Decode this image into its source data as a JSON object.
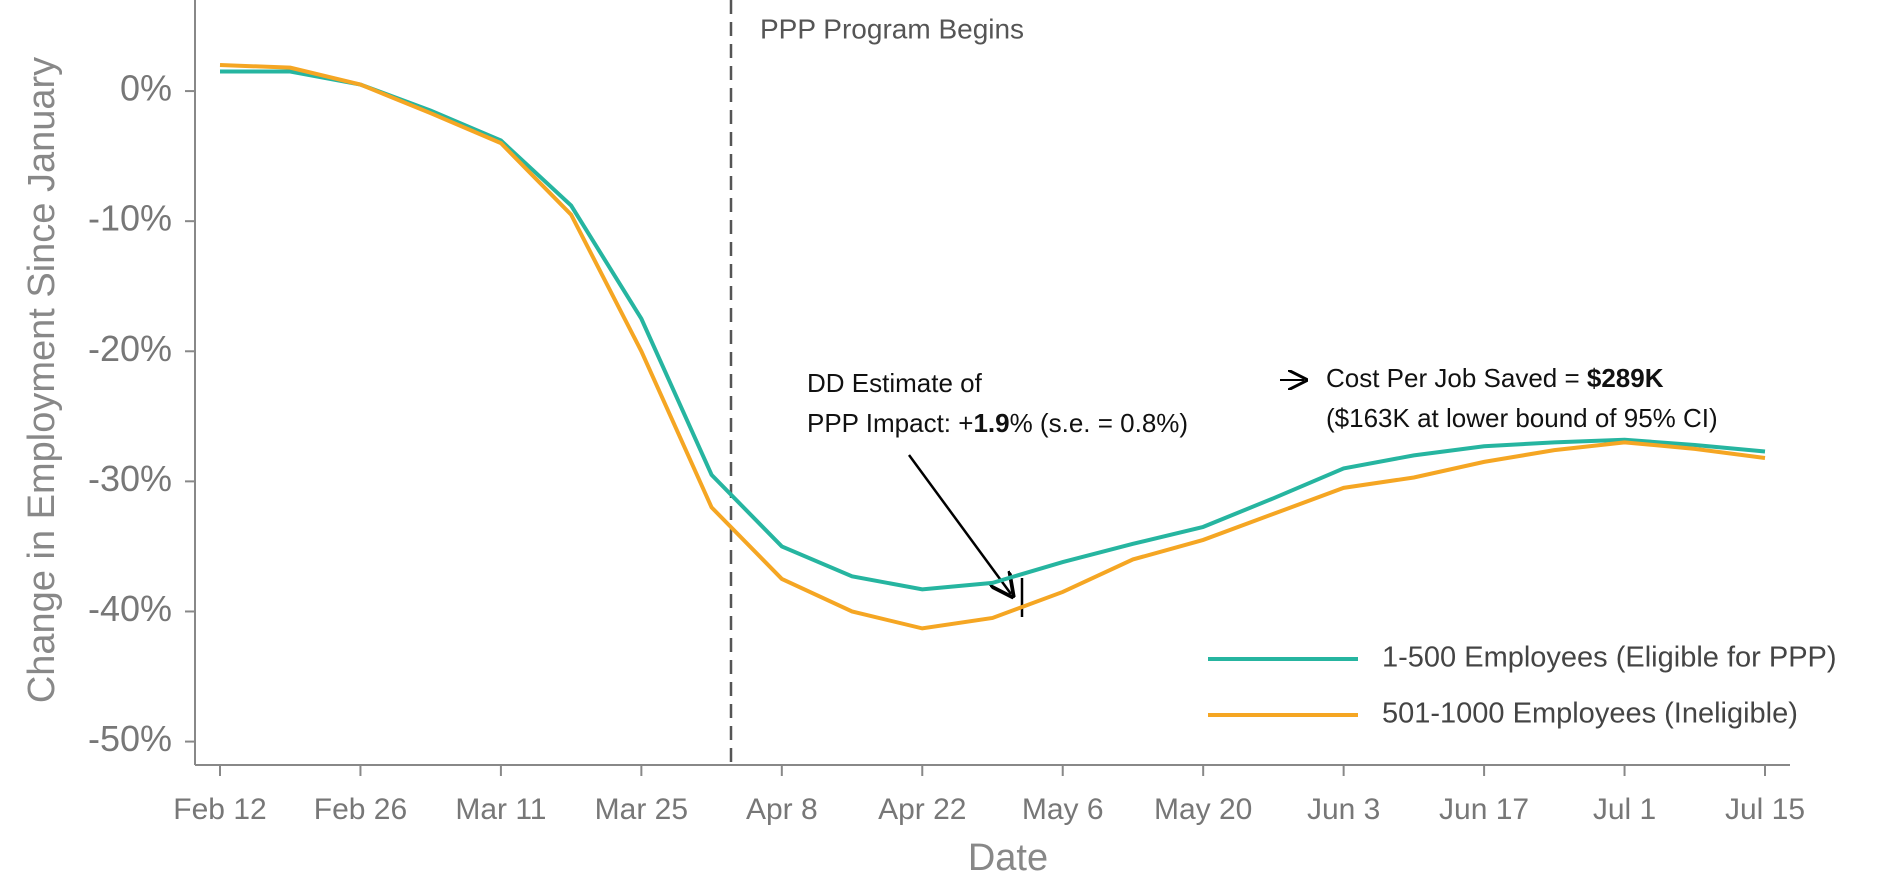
{
  "chart_data": {
    "type": "line",
    "x_label": "Date",
    "y_label": "Change in Employment Since January",
    "categories": [
      "Feb 12",
      null,
      "Feb 26",
      null,
      "Mar 11",
      null,
      "Mar 25",
      null,
      "Apr 8",
      null,
      "Apr 22",
      null,
      "May 6",
      null,
      "May 20",
      null,
      "Jun 3",
      null,
      "Jun 17",
      null,
      "Jul 1",
      null,
      "Jul 15"
    ],
    "series": [
      {
        "name": "1-500 Employees (Eligible for PPP)",
        "color": "#26b5a0",
        "values": [
          1.5,
          1.5,
          0.5,
          -1.5,
          -3.8,
          -8.8,
          -17.5,
          -29.5,
          -35,
          -37.3,
          -38.3,
          -37.8,
          -36.2,
          -34.8,
          -33.5,
          -31.3,
          -29,
          -28,
          -27.3,
          -27,
          -26.8,
          -27.2,
          -27.7
        ]
      },
      {
        "name": "501-1000 Employees (Ineligible)",
        "color": "#f5a623",
        "values": [
          2,
          1.8,
          0.5,
          -1.7,
          -4,
          -9.5,
          -20,
          -32,
          -37.5,
          -40,
          -41.3,
          -40.5,
          -38.5,
          -36,
          -34.5,
          -32.5,
          -30.5,
          -29.7,
          -28.5,
          -27.6,
          -27,
          -27.5,
          -28.2
        ]
      }
    ],
    "ylim": [
      -51.8,
      7
    ],
    "yticks": [
      {
        "value": 0,
        "label": "0%"
      },
      {
        "value": -10,
        "label": "-10%"
      },
      {
        "value": -20,
        "label": "-20%"
      },
      {
        "value": -30,
        "label": "-30%"
      },
      {
        "value": -40,
        "label": "-40%"
      },
      {
        "value": -50,
        "label": "-50%"
      }
    ],
    "annotations": {
      "program": "PPP Program Begins",
      "dd_line1": "DD Estimate of",
      "dd_line2_a": "PPP Impact: +",
      "dd_line2_b": "1.9",
      "dd_line2_c": "% (s.e. = 0.8%)",
      "cost_a": "Cost Per Job Saved = ",
      "cost_b": "$289K",
      "cost_line2": "($163K at lower bound of 95% CI)"
    },
    "legend": "bottom-right"
  }
}
